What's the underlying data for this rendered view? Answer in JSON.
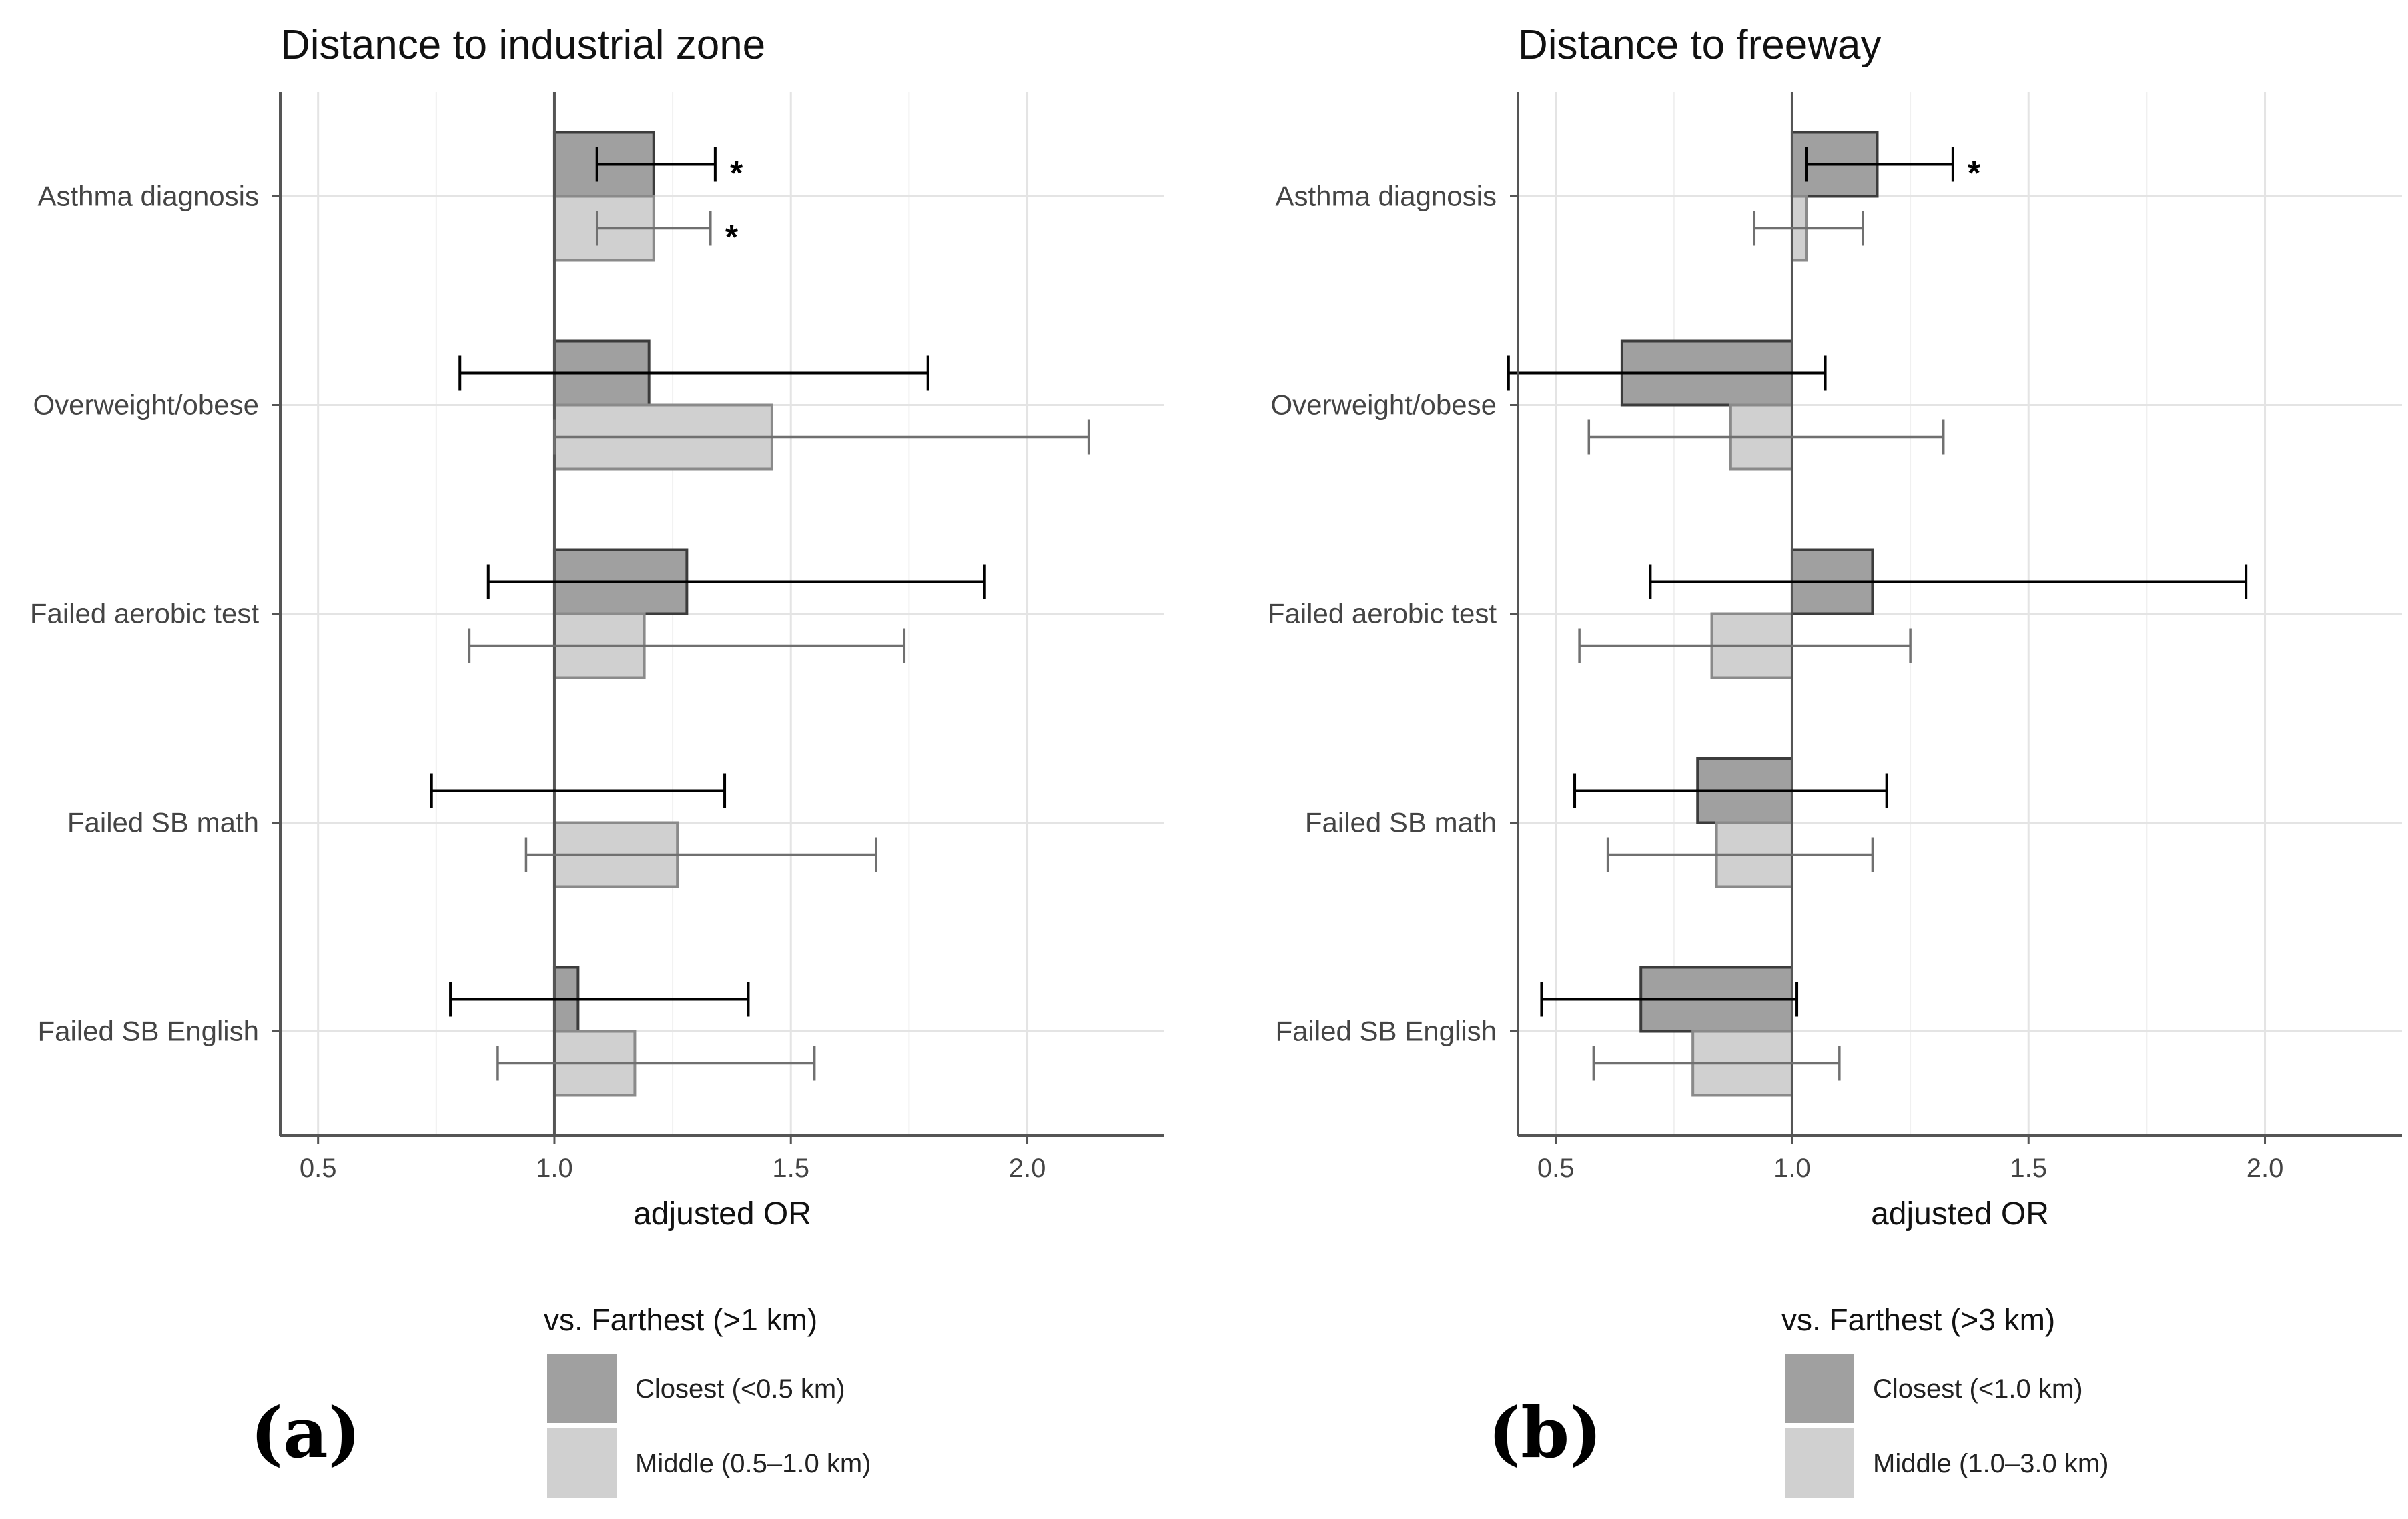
{
  "chart_data": [
    {
      "type": "bar",
      "orientation": "horizontal",
      "panel_label": "(a)",
      "title": "Distance to industrial zone",
      "xlabel": "adjusted OR",
      "ylabel": "",
      "reference_value": 1.0,
      "xlim": [
        0.42,
        2.29
      ],
      "xticks": [
        0.5,
        1.0,
        1.5,
        2.0
      ],
      "xtick_labels": [
        "0.5",
        "1.0",
        "1.5",
        "2.0"
      ],
      "grid": true,
      "categories": [
        "Asthma diagnosis",
        "Overweight/obese",
        "Failed aerobic test",
        "Failed SB math",
        "Failed SB English"
      ],
      "legend": {
        "title": "vs. Farthest (>1 km)",
        "position": "bottom"
      },
      "series": [
        {
          "name": "Closest (<0.5 km)",
          "color": "#a0a0a0",
          "errorbar_color": "#000000",
          "values": [
            1.21,
            1.2,
            1.28,
            1.0,
            1.05
          ],
          "ci_low": [
            1.09,
            0.8,
            0.86,
            0.74,
            0.78
          ],
          "ci_high": [
            1.34,
            1.79,
            1.91,
            1.36,
            1.41
          ],
          "significant": [
            "*",
            "",
            "",
            "",
            ""
          ]
        },
        {
          "name": "Middle (0.5–1.0 km)",
          "color": "#d0d0d0",
          "errorbar_color": "#707070",
          "values": [
            1.21,
            1.46,
            1.19,
            1.26,
            1.17
          ],
          "ci_low": [
            1.09,
            1.0,
            0.82,
            0.94,
            0.88
          ],
          "ci_high": [
            1.33,
            2.13,
            1.74,
            1.68,
            1.55
          ],
          "significant": [
            "*",
            "",
            "",
            "",
            ""
          ]
        }
      ]
    },
    {
      "type": "bar",
      "orientation": "horizontal",
      "panel_label": "(b)",
      "title": "Distance to freeway",
      "xlabel": "adjusted OR",
      "ylabel": "",
      "reference_value": 1.0,
      "xlim": [
        0.42,
        2.29
      ],
      "xticks": [
        0.5,
        1.0,
        1.5,
        2.0
      ],
      "xtick_labels": [
        "0.5",
        "1.0",
        "1.5",
        "2.0"
      ],
      "grid": true,
      "categories": [
        "Asthma diagnosis",
        "Overweight/obese",
        "Failed aerobic test",
        "Failed SB math",
        "Failed SB English"
      ],
      "legend": {
        "title": "vs. Farthest (>3 km)",
        "position": "bottom"
      },
      "series": [
        {
          "name": "Closest (<1.0 km)",
          "color": "#a0a0a0",
          "errorbar_color": "#000000",
          "values": [
            1.18,
            0.64,
            1.17,
            0.8,
            0.68
          ],
          "ci_low": [
            1.03,
            0.4,
            0.7,
            0.54,
            0.47
          ],
          "ci_high": [
            1.34,
            1.07,
            1.96,
            1.2,
            1.01
          ],
          "significant": [
            "*",
            "",
            "",
            "",
            ""
          ]
        },
        {
          "name": "Middle (1.0–3.0 km)",
          "color": "#d0d0d0",
          "errorbar_color": "#707070",
          "values": [
            1.03,
            0.87,
            0.83,
            0.84,
            0.79
          ],
          "ci_low": [
            0.92,
            0.57,
            0.55,
            0.61,
            0.58
          ],
          "ci_high": [
            1.15,
            1.32,
            1.25,
            1.17,
            1.1
          ],
          "significant": [
            "",
            "",
            "",
            "",
            ""
          ]
        }
      ]
    }
  ]
}
